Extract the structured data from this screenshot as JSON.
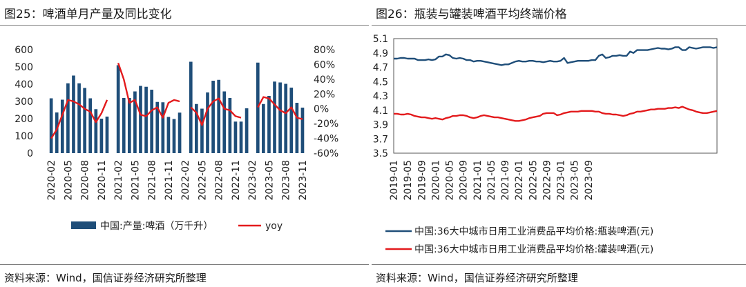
{
  "left": {
    "title": "图25：啤酒单月产量及同比变化",
    "source": "资料来源：Wind，国信证券经济研究所整理"
  },
  "right": {
    "title": "图26：瓶装与罐装啤酒平均终端价格",
    "source": "资料来源：Wind，国信证券经济研究所整理"
  },
  "chart_data": [
    {
      "type": "bar",
      "title": "",
      "x_tick_labels": [
        "2020-02",
        "2020-05",
        "2020-08",
        "2020-11",
        "2021-02",
        "2021-05",
        "2021-08",
        "2021-11",
        "2022-02",
        "2022-05",
        "2022-08",
        "2022-11",
        "2023-02",
        "2023-05",
        "2023-08",
        "2023-11"
      ],
      "x": [
        "2020-01",
        "2020-02",
        "2020-03",
        "2020-04",
        "2020-05",
        "2020-06",
        "2020-07",
        "2020-08",
        "2020-09",
        "2020-10",
        "2020-11",
        "2020-12",
        "2021-01",
        "2021-02",
        "2021-03",
        "2021-04",
        "2021-05",
        "2021-06",
        "2021-07",
        "2021-08",
        "2021-09",
        "2021-10",
        "2021-11",
        "2021-12",
        "2022-01",
        "2022-02",
        "2022-03",
        "2022-04",
        "2022-05",
        "2022-06",
        "2022-07",
        "2022-08",
        "2022-09",
        "2022-10",
        "2022-11",
        "2022-12",
        "2023-01",
        "2023-02",
        "2023-03",
        "2023-04",
        "2023-05",
        "2023-06",
        "2023-07",
        "2023-08",
        "2023-09",
        "2023-10",
        "2023-11"
      ],
      "series": [
        {
          "name": "中国:产量:啤酒（万千升）",
          "axis": "left",
          "color": "#1f4e79",
          "values": [
            null,
            318,
            236,
            310,
            405,
            450,
            405,
            378,
            318,
            255,
            200,
            212,
            null,
            510,
            320,
            320,
            358,
            390,
            385,
            368,
            297,
            295,
            210,
            198,
            235,
            null,
            530,
            285,
            258,
            352,
            420,
            425,
            358,
            320,
            183,
            183,
            260,
            null,
            525,
            285,
            332,
            415,
            410,
            402,
            380,
            292,
            264
          ]
        },
        {
          "name": "yoy",
          "axis": "right",
          "color": "#e31a1c",
          "type": "line",
          "values": [
            null,
            -40,
            -28,
            -8,
            12,
            10,
            6,
            0,
            -4,
            -18,
            -6,
            12,
            null,
            62,
            40,
            8,
            12,
            -8,
            -10,
            -2,
            2,
            -12,
            8,
            12,
            10,
            null,
            2,
            -5,
            -22,
            0,
            10,
            14,
            0,
            -2,
            -10,
            -12,
            null,
            null,
            2,
            16,
            14,
            6,
            -2,
            -6,
            2,
            -12,
            -14
          ]
        }
      ],
      "y_left": {
        "min": 0,
        "max": 600,
        "ticks": [
          0,
          100,
          200,
          300,
          400,
          500,
          600
        ]
      },
      "y_right": {
        "min": -60,
        "max": 80,
        "ticks": [
          "-60%",
          "-40%",
          "-20%",
          "0%",
          "20%",
          "40%",
          "60%",
          "80%"
        ]
      },
      "legend": [
        "中国:产量:啤酒（万千升）",
        "yoy"
      ],
      "legend_position": "bottom"
    },
    {
      "type": "line",
      "title": "",
      "x_tick_labels": [
        "2019-01",
        "2019-05",
        "2019-09",
        "2020-01",
        "2020-05",
        "2020-09",
        "2021-01",
        "2021-05",
        "2021-09",
        "2022-01",
        "2022-05",
        "2022-09",
        "2023-01",
        "2023-05",
        "2023-09"
      ],
      "x_start": "2019-01",
      "x_end": "2023-11",
      "series": [
        {
          "name": "中国:36大中城市日用工业消费品平均价格:瓶装啤酒(元)",
          "color": "#1f4e79",
          "values": [
            4.82,
            4.82,
            4.83,
            4.83,
            4.82,
            4.82,
            4.82,
            4.8,
            4.8,
            4.8,
            4.81,
            4.8,
            4.81,
            4.85,
            4.85,
            4.88,
            4.87,
            4.83,
            4.82,
            4.83,
            4.82,
            4.8,
            4.8,
            4.78,
            4.79,
            4.79,
            4.78,
            4.77,
            4.76,
            4.75,
            4.74,
            4.73,
            4.74,
            4.74,
            4.76,
            4.78,
            4.79,
            4.78,
            4.78,
            4.79,
            4.79,
            4.78,
            4.78,
            4.77,
            4.78,
            4.79,
            4.78,
            4.78,
            4.79,
            4.83,
            4.76,
            4.77,
            4.78,
            4.79,
            4.79,
            4.79,
            4.79,
            4.8,
            4.8,
            4.86,
            4.88,
            4.83,
            4.84,
            4.86,
            4.86,
            4.87,
            4.86,
            4.86,
            4.92,
            4.9,
            4.94,
            4.94,
            4.94,
            4.94,
            4.95,
            4.96,
            4.97,
            4.96,
            4.96,
            4.95,
            4.96,
            4.98,
            4.98,
            4.94,
            4.94,
            4.98,
            4.97,
            4.96,
            4.97,
            4.98,
            4.98,
            4.98,
            4.97,
            4.98
          ]
        },
        {
          "name": "中国:36大中城市日用工业消费品平均价格:罐装啤酒(元)",
          "color": "#e31a1c",
          "values": [
            4.05,
            4.05,
            4.04,
            4.04,
            4.05,
            4.04,
            4.02,
            4.01,
            4.0,
            4.0,
            3.99,
            3.98,
            3.99,
            3.98,
            3.97,
            3.99,
            4.0,
            4.02,
            4.02,
            4.03,
            4.03,
            4.02,
            4.0,
            3.99,
            4.0,
            4.02,
            4.03,
            4.02,
            4.01,
            4.0,
            4.0,
            3.99,
            3.98,
            3.97,
            3.96,
            3.95,
            3.95,
            3.96,
            3.97,
            3.99,
            4.0,
            4.01,
            4.02,
            4.05,
            4.06,
            4.06,
            4.06,
            4.03,
            4.04,
            4.06,
            4.07,
            4.08,
            4.08,
            4.08,
            4.09,
            4.09,
            4.09,
            4.09,
            4.08,
            4.08,
            4.06,
            4.05,
            4.05,
            4.04,
            4.04,
            4.03,
            4.02,
            4.03,
            4.05,
            4.06,
            4.08,
            4.08,
            4.09,
            4.1,
            4.11,
            4.11,
            4.12,
            4.12,
            4.12,
            4.13,
            4.13,
            4.14,
            4.13,
            4.15,
            4.13,
            4.11,
            4.1,
            4.08,
            4.07,
            4.06,
            4.06,
            4.07,
            4.08,
            4.09
          ]
        }
      ],
      "y": {
        "min": 3.5,
        "max": 5.1,
        "ticks": [
          "3.5",
          "3.7",
          "3.9",
          "4.1",
          "4.3",
          "4.5",
          "4.7",
          "4.9",
          "5.1"
        ]
      },
      "legend": [
        "中国:36大中城市日用工业消费品平均价格:瓶装啤酒(元)",
        "中国:36大中城市日用工业消费品平均价格:罐装啤酒(元)"
      ],
      "legend_position": "bottom"
    }
  ]
}
